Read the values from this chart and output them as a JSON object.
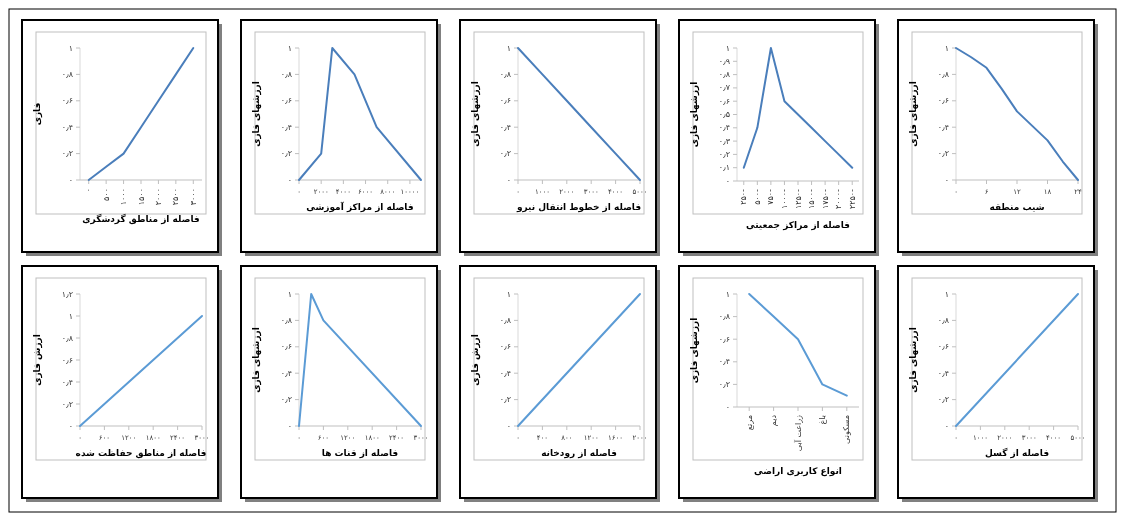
{
  "chart_data": [
    {
      "type": "line",
      "xlabel": "فاصله از مناطق گردشگری",
      "ylabel": "فازی",
      "categories": [
        "۰",
        "۵۰۰",
        "۱۰۰۰",
        "۱۵۰۰",
        "۲۰۰۰",
        "۲۵۰۰",
        "۳۰۰۰"
      ],
      "series": [
        {
          "color": "#4a7ebb",
          "values": [
            0,
            0.1,
            0.2,
            0.4,
            0.6,
            0.8,
            1
          ]
        }
      ],
      "ylim": [
        0,
        1
      ],
      "yticks": [
        {
          "value": 0,
          "label": "۰"
        },
        {
          "value": 0.2,
          "label": "۰٫۲"
        },
        {
          "value": 0.4,
          "label": "۰٫۴"
        },
        {
          "value": 0.6,
          "label": "۰٫۶"
        },
        {
          "value": 0.8,
          "label": "۰٫۸"
        },
        {
          "value": 1,
          "label": "۱"
        }
      ]
    },
    {
      "type": "line",
      "xlabel": "فاصله از مراکز آموزشی",
      "ylabel": "ارزشهای فازی",
      "x": [
        0,
        2000,
        3000,
        5000,
        7000,
        11000
      ],
      "series": [
        {
          "color": "#4a7ebb",
          "values": [
            0,
            0.2,
            1,
            0.8,
            0.4,
            0
          ]
        }
      ],
      "xlim": [
        0,
        11000
      ],
      "xticks": [
        {
          "value": 0,
          "label": "۰"
        },
        {
          "value": 2000,
          "label": "۲۰۰۰"
        },
        {
          "value": 4000,
          "label": "۴۰۰۰"
        },
        {
          "value": 6000,
          "label": "۶۰۰۰"
        },
        {
          "value": 8000,
          "label": "۸۰۰۰"
        },
        {
          "value": 10000,
          "label": "۱۰۰۰۰"
        }
      ],
      "ylim": [
        0,
        1
      ],
      "yticks": [
        {
          "value": 0,
          "label": "۰"
        },
        {
          "value": 0.2,
          "label": "۰٫۲"
        },
        {
          "value": 0.4,
          "label": "۰٫۴"
        },
        {
          "value": 0.6,
          "label": "۰٫۶"
        },
        {
          "value": 0.8,
          "label": "۰٫۸"
        },
        {
          "value": 1,
          "label": "۱"
        }
      ]
    },
    {
      "type": "line",
      "xlabel": "فاصله از خطوط انتقال نیرو",
      "ylabel": "ارزشهای فازی",
      "x": [
        0,
        1000,
        2000,
        3000,
        4000,
        5000
      ],
      "series": [
        {
          "color": "#4a7ebb",
          "values": [
            1,
            0.8,
            0.6,
            0.4,
            0.2,
            0
          ]
        }
      ],
      "xlim": [
        0,
        5000
      ],
      "xticks": [
        {
          "value": 0,
          "label": "۰"
        },
        {
          "value": 1000,
          "label": "۱۰۰۰"
        },
        {
          "value": 2000,
          "label": "۲۰۰۰"
        },
        {
          "value": 3000,
          "label": "۳۰۰۰"
        },
        {
          "value": 4000,
          "label": "۴۰۰۰"
        },
        {
          "value": 5000,
          "label": "۵۰۰۰"
        }
      ],
      "ylim": [
        0,
        1
      ],
      "yticks": [
        {
          "value": 0,
          "label": "۰"
        },
        {
          "value": 0.2,
          "label": "۰٫۲"
        },
        {
          "value": 0.4,
          "label": "۰٫۴"
        },
        {
          "value": 0.6,
          "label": "۰٫۶"
        },
        {
          "value": 0.8,
          "label": "۰٫۸"
        },
        {
          "value": 1,
          "label": "۱"
        }
      ]
    },
    {
      "type": "line",
      "xlabel": "فاصله از مراکز جمعیتی",
      "ylabel": "ارزشهای فازی",
      "categories": [
        "۲۵۰-",
        "۵۰۰-",
        "۷۵۰-",
        "۱۰۰۰-",
        "۱۲۵۰-",
        "۱۵۰۰-",
        "۱۷۵۰-",
        "۲۰۰۰-",
        "۲۲۵۰-"
      ],
      "series": [
        {
          "color": "#4a7ebb",
          "values": [
            0.1,
            0.4,
            1,
            0.6,
            0.5,
            0.4,
            0.3,
            0.2,
            0.1
          ]
        }
      ],
      "ylim": [
        0,
        1
      ],
      "yticks": [
        {
          "value": 0,
          "label": "۰"
        },
        {
          "value": 0.1,
          "label": "۰٫۱"
        },
        {
          "value": 0.2,
          "label": "۰٫۲"
        },
        {
          "value": 0.3,
          "label": "۰٫۳"
        },
        {
          "value": 0.4,
          "label": "۰٫۴"
        },
        {
          "value": 0.5,
          "label": "۰٫۵"
        },
        {
          "value": 0.6,
          "label": "۰٫۶"
        },
        {
          "value": 0.7,
          "label": "۰٫۷"
        },
        {
          "value": 0.8,
          "label": "۰٫۸"
        },
        {
          "value": 0.9,
          "label": "۰٫۹"
        },
        {
          "value": 1,
          "label": "۱"
        }
      ]
    },
    {
      "type": "line",
      "xlabel": "شیب منطقه",
      "ylabel": "ارزشهای فازی",
      "x": [
        0,
        3,
        6,
        9,
        12,
        15,
        18,
        21,
        24
      ],
      "series": [
        {
          "color": "#4a7ebb",
          "values": [
            1,
            0.93,
            0.85,
            0.69,
            0.52,
            0.41,
            0.3,
            0.14,
            0
          ]
        }
      ],
      "xlim": [
        0,
        24
      ],
      "xticks": [
        {
          "value": 0,
          "label": "۰"
        },
        {
          "value": 6,
          "label": "۶"
        },
        {
          "value": 12,
          "label": "۱۲"
        },
        {
          "value": 18,
          "label": "۱۸"
        },
        {
          "value": 24,
          "label": "۲۴"
        }
      ],
      "ylim": [
        0,
        1
      ],
      "yticks": [
        {
          "value": 0,
          "label": "۰"
        },
        {
          "value": 0.2,
          "label": "۰٫۲"
        },
        {
          "value": 0.4,
          "label": "۰٫۴"
        },
        {
          "value": 0.6,
          "label": "۰٫۶"
        },
        {
          "value": 0.8,
          "label": "۰٫۸"
        },
        {
          "value": 1,
          "label": "۱"
        }
      ]
    },
    {
      "type": "line",
      "xlabel": "فاصله از مناطق حفاظت شده",
      "ylabel": "ارزش فازی",
      "x": [
        0,
        3000
      ],
      "series": [
        {
          "color": "#5b9bd5",
          "values": [
            0,
            1
          ]
        }
      ],
      "xlim": [
        0,
        3000
      ],
      "xticks": [
        {
          "value": 0,
          "label": "۰"
        },
        {
          "value": 600,
          "label": "۶۰۰"
        },
        {
          "value": 1200,
          "label": "۱۲۰۰"
        },
        {
          "value": 1800,
          "label": "۱۸۰۰"
        },
        {
          "value": 2400,
          "label": "۲۴۰۰"
        },
        {
          "value": 3000,
          "label": "۳۰۰۰"
        }
      ],
      "ylim": [
        0,
        1.2
      ],
      "yticks": [
        {
          "value": 0,
          "label": "۰"
        },
        {
          "value": 0.2,
          "label": "۰٫۲"
        },
        {
          "value": 0.4,
          "label": "۰٫۴"
        },
        {
          "value": 0.6,
          "label": "۰٫۶"
        },
        {
          "value": 0.8,
          "label": "۰٫۸"
        },
        {
          "value": 1,
          "label": "۱"
        },
        {
          "value": 1.2,
          "label": "۱٫۲"
        }
      ]
    },
    {
      "type": "line",
      "xlabel": "فاصله از قنات ها",
      "ylabel": "ارزشهای فازی",
      "x": [
        0,
        300,
        600,
        3000
      ],
      "series": [
        {
          "color": "#5b9bd5",
          "values": [
            0,
            1,
            0.8,
            0
          ]
        }
      ],
      "xlim": [
        0,
        3000
      ],
      "xticks": [
        {
          "value": 0,
          "label": "۰"
        },
        {
          "value": 600,
          "label": "۶۰۰"
        },
        {
          "value": 1200,
          "label": "۱۲۰۰"
        },
        {
          "value": 1800,
          "label": "۱۸۰۰"
        },
        {
          "value": 2400,
          "label": "۲۴۰۰"
        },
        {
          "value": 3000,
          "label": "۳۰۰۰"
        }
      ],
      "ylim": [
        0,
        1
      ],
      "yticks": [
        {
          "value": 0,
          "label": "۰"
        },
        {
          "value": 0.2,
          "label": "۰٫۲"
        },
        {
          "value": 0.4,
          "label": "۰٫۴"
        },
        {
          "value": 0.6,
          "label": "۰٫۶"
        },
        {
          "value": 0.8,
          "label": "۰٫۸"
        },
        {
          "value": 1,
          "label": "۱"
        }
      ]
    },
    {
      "type": "line",
      "xlabel": "فاصله از رودخانه",
      "ylabel": "ارزش فازی",
      "x": [
        0,
        2000
      ],
      "series": [
        {
          "color": "#5b9bd5",
          "values": [
            0,
            1
          ]
        }
      ],
      "xlim": [
        0,
        2000
      ],
      "xticks": [
        {
          "value": 0,
          "label": "۰"
        },
        {
          "value": 400,
          "label": "۴۰۰"
        },
        {
          "value": 800,
          "label": "۸۰۰"
        },
        {
          "value": 1200,
          "label": "۱۲۰۰"
        },
        {
          "value": 1600,
          "label": "۱۶۰۰"
        },
        {
          "value": 2000,
          "label": "۲۰۰۰"
        }
      ],
      "ylim": [
        0,
        1
      ],
      "yticks": [
        {
          "value": 0,
          "label": "۰"
        },
        {
          "value": 0.2,
          "label": "۰٫۲"
        },
        {
          "value": 0.4,
          "label": "۰٫۴"
        },
        {
          "value": 0.6,
          "label": "۰٫۶"
        },
        {
          "value": 0.8,
          "label": "۰٫۸"
        },
        {
          "value": 1,
          "label": "۱"
        }
      ]
    },
    {
      "type": "line",
      "xlabel": "انواع کاربری اراضی",
      "ylabel": "ارزشهای فازی",
      "categories": [
        "مرتع",
        "دیم",
        "زراعت آبی",
        "باغ",
        "مسکونی"
      ],
      "series": [
        {
          "color": "#5b9bd5",
          "values": [
            1,
            0.8,
            0.6,
            0.2,
            0.1
          ]
        }
      ],
      "ylim": [
        0,
        1
      ],
      "yticks": [
        {
          "value": 0,
          "label": "۰"
        },
        {
          "value": 0.2,
          "label": "۰٫۲"
        },
        {
          "value": 0.4,
          "label": "۰٫۴"
        },
        {
          "value": 0.6,
          "label": "۰٫۶"
        },
        {
          "value": 0.8,
          "label": "۰٫۸"
        },
        {
          "value": 1,
          "label": "۱"
        }
      ]
    },
    {
      "type": "line",
      "xlabel": "فاصله از گسل",
      "ylabel": "ارزشهای فازی",
      "x": [
        0,
        5000
      ],
      "series": [
        {
          "color": "#5b9bd5",
          "values": [
            0,
            1
          ]
        }
      ],
      "xlim": [
        0,
        5000
      ],
      "xticks": [
        {
          "value": 0,
          "label": "۰"
        },
        {
          "value": 1000,
          "label": "۱۰۰۰"
        },
        {
          "value": 2000,
          "label": "۲۰۰۰"
        },
        {
          "value": 3000,
          "label": "۳۰۰۰"
        },
        {
          "value": 4000,
          "label": "۴۰۰۰"
        },
        {
          "value": 5000,
          "label": "۵۰۰۰"
        }
      ],
      "ylim": [
        0,
        1
      ],
      "yticks": [
        {
          "value": 0,
          "label": "۰"
        },
        {
          "value": 0.2,
          "label": "۰٫۲"
        },
        {
          "value": 0.4,
          "label": "۰٫۴"
        },
        {
          "value": 0.6,
          "label": "۰٫۶"
        },
        {
          "value": 0.8,
          "label": "۰٫۸"
        },
        {
          "value": 1,
          "label": "۱"
        }
      ]
    }
  ]
}
